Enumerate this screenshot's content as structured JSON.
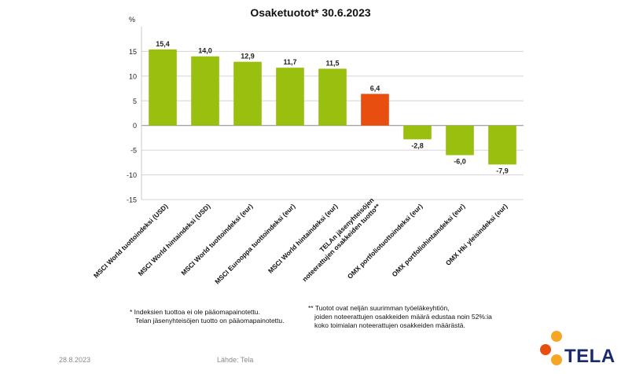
{
  "chart_data": {
    "type": "bar",
    "title": "Osaketuotot* 30.6.2023",
    "ylabel": "%",
    "xlabel": "",
    "ylim": [
      -15,
      20
    ],
    "yticks": [
      -15,
      -10,
      -5,
      0,
      5,
      10,
      15
    ],
    "grid": true,
    "categories": [
      "MSCI World tuottoindeksi (USD)",
      "MSCI World hintaindeksi (USD)",
      "MSCI World tuottoindeksi (eur)",
      "MSCI Eurooppa tuottoindeksi (eur)",
      "MSCI World hintaindeksi (eur)",
      "TELAn jäsenyhteisöjen noteerattujen osakkeiden tuotto**",
      "OMX portfoliotuottoindeksi (eur)",
      "OMX portfoliohintaindeksi (eur)",
      "OMX  Hki yleisindeksi (eur)"
    ],
    "category_lines": [
      [
        "MSCI World tuottoindeksi (USD)"
      ],
      [
        "MSCI World hintaindeksi (USD)"
      ],
      [
        "MSCI World tuottoindeksi (eur)"
      ],
      [
        "MSCI Eurooppa tuottoindeksi (eur)"
      ],
      [
        "MSCI World hintaindeksi (eur)"
      ],
      [
        "TELAn jäsenyhteisöjen",
        "noteerattujen osakkeiden tuotto**"
      ],
      [
        "OMX portfoliotuottoindeksi (eur)"
      ],
      [
        "OMX portfoliohintaindeksi (eur)"
      ],
      [
        "OMX  Hki yleisindeksi (eur)"
      ]
    ],
    "values": [
      15.4,
      14.0,
      12.9,
      11.7,
      11.5,
      6.4,
      -2.8,
      -6.0,
      -7.9
    ],
    "value_labels": [
      "15,4",
      "14,0",
      "12,9",
      "11,7",
      "11,5",
      "6,4",
      "-2,8",
      "-6,0",
      "-7,9"
    ],
    "colors": [
      "#99c00f",
      "#99c00f",
      "#99c00f",
      "#99c00f",
      "#99c00f",
      "#e84e0f",
      "#99c00f",
      "#99c00f",
      "#99c00f"
    ]
  },
  "notes": {
    "left": [
      "* Indeksien tuottoa ei ole pääomapainotettu.",
      "  Telan jäsenyhteisöjen tuotto on pääomapainotettu."
    ],
    "right": [
      "** Tuotot ovat neljän suurimman työeläkeyhtiön,",
      "      joiden noteerattujen osakkeiden määrä edustaa noin 52%:ia",
      "      koko toimialan noteerattujen osakkeiden määrästä."
    ]
  },
  "footer": {
    "date": "28.8.2023",
    "source": "Lähde: Tela"
  },
  "logo": {
    "text": "TELA",
    "colors": [
      "#f6a623",
      "#e84e0f",
      "#1b2a6b"
    ]
  }
}
